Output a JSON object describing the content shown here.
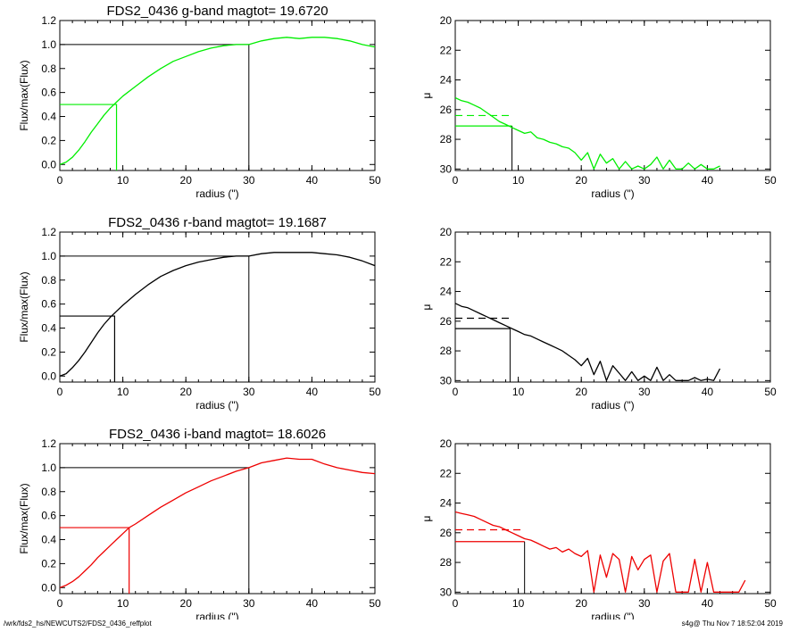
{
  "footer": {
    "left": "/wrk/fds2_hs/NEWCUTS2/FDS2_0436_reffplot",
    "right": "s4g@  Thu Nov  7 18:52:04 2019"
  },
  "chart_data": [
    {
      "type": "line",
      "panel": "growth",
      "band": "g",
      "title": "FDS2_0436 g-band  magtot=      19.6720",
      "xlabel": "radius (\")",
      "ylabel": "Flux/max(Flux)",
      "xlim": [
        0,
        50
      ],
      "ylim": [
        -0.05,
        1.2
      ],
      "xticks": [
        0,
        10,
        20,
        30,
        40,
        50
      ],
      "yticks": [
        0.0,
        0.2,
        0.4,
        0.6,
        0.8,
        1.0,
        1.2
      ],
      "color": "#00ee00",
      "reff": 9.0,
      "rmax": 30.0,
      "x": [
        0,
        1,
        2,
        3,
        4,
        5,
        6,
        7,
        8,
        9,
        10,
        12,
        14,
        16,
        18,
        20,
        22,
        24,
        26,
        28,
        30,
        32,
        34,
        36,
        38,
        40,
        42,
        44,
        46,
        48,
        50
      ],
      "y": [
        0.0,
        0.02,
        0.06,
        0.12,
        0.19,
        0.27,
        0.34,
        0.41,
        0.47,
        0.52,
        0.57,
        0.65,
        0.73,
        0.8,
        0.86,
        0.9,
        0.94,
        0.97,
        0.99,
        1.0,
        1.0,
        1.03,
        1.05,
        1.06,
        1.05,
        1.06,
        1.06,
        1.05,
        1.03,
        1.0,
        0.98
      ]
    },
    {
      "type": "line",
      "panel": "surface-brightness",
      "band": "g",
      "xlabel": "radius (\")",
      "ylabel": "μ",
      "xlim": [
        0,
        50
      ],
      "ylim": [
        30.1,
        20
      ],
      "xticks": [
        0,
        10,
        20,
        30,
        40,
        50
      ],
      "yticks": [
        20,
        22,
        24,
        26,
        28,
        30
      ],
      "color": "#00ee00",
      "mu_eff": 27.1,
      "mu_mean": 26.4,
      "reff": 9.0,
      "x": [
        0,
        1,
        2,
        3,
        4,
        5,
        6,
        7,
        8,
        9,
        10,
        11,
        12,
        13,
        14,
        15,
        16,
        17,
        18,
        19,
        20,
        21,
        22,
        23,
        24,
        25,
        26,
        27,
        28,
        29,
        30,
        31,
        32,
        33,
        34,
        35,
        36,
        37,
        38,
        39,
        40,
        41,
        42
      ],
      "y": [
        25.2,
        25.4,
        25.5,
        25.7,
        25.9,
        26.2,
        26.5,
        26.8,
        27.0,
        27.2,
        27.4,
        27.6,
        27.5,
        27.9,
        28.0,
        28.2,
        28.3,
        28.5,
        28.6,
        28.9,
        29.4,
        28.9,
        30.0,
        29.0,
        29.6,
        29.3,
        30.0,
        29.5,
        30.0,
        29.8,
        30.0,
        29.7,
        29.2,
        30.0,
        29.4,
        30.0,
        30.0,
        29.6,
        30.0,
        29.7,
        30.0,
        30.0,
        29.8
      ]
    },
    {
      "type": "line",
      "panel": "growth",
      "band": "r",
      "title": "FDS2_0436 r-band  magtot=      19.1687",
      "xlabel": "radius (\")",
      "ylabel": "Flux/max(Flux)",
      "xlim": [
        0,
        50
      ],
      "ylim": [
        -0.05,
        1.2
      ],
      "xticks": [
        0,
        10,
        20,
        30,
        40,
        50
      ],
      "yticks": [
        0.0,
        0.2,
        0.4,
        0.6,
        0.8,
        1.0,
        1.2
      ],
      "color": "#000000",
      "reff": 8.7,
      "rmax": 30.0,
      "x": [
        0,
        1,
        2,
        3,
        4,
        5,
        6,
        7,
        8,
        9,
        10,
        12,
        14,
        16,
        18,
        20,
        22,
        24,
        26,
        28,
        30,
        32,
        34,
        36,
        38,
        40,
        42,
        44,
        46,
        48,
        50
      ],
      "y": [
        0.0,
        0.02,
        0.07,
        0.13,
        0.2,
        0.28,
        0.36,
        0.43,
        0.49,
        0.54,
        0.59,
        0.68,
        0.76,
        0.83,
        0.88,
        0.92,
        0.95,
        0.97,
        0.99,
        1.0,
        1.0,
        1.02,
        1.03,
        1.03,
        1.03,
        1.03,
        1.02,
        1.01,
        0.99,
        0.96,
        0.92
      ]
    },
    {
      "type": "line",
      "panel": "surface-brightness",
      "band": "r",
      "xlabel": "radius (\")",
      "ylabel": "μ",
      "xlim": [
        0,
        50
      ],
      "ylim": [
        30.1,
        20
      ],
      "xticks": [
        0,
        10,
        20,
        30,
        40,
        50
      ],
      "yticks": [
        20,
        22,
        24,
        26,
        28,
        30
      ],
      "color": "#000000",
      "mu_eff": 26.5,
      "mu_mean": 25.8,
      "reff": 8.7,
      "x": [
        0,
        1,
        2,
        3,
        4,
        5,
        6,
        7,
        8,
        9,
        10,
        11,
        12,
        13,
        14,
        15,
        16,
        17,
        18,
        19,
        20,
        21,
        22,
        23,
        24,
        25,
        26,
        27,
        28,
        29,
        30,
        31,
        32,
        33,
        34,
        35,
        36,
        37,
        38,
        39,
        40,
        41,
        42
      ],
      "y": [
        24.8,
        25.0,
        25.1,
        25.3,
        25.5,
        25.7,
        25.9,
        26.1,
        26.3,
        26.5,
        26.7,
        26.9,
        27.0,
        27.2,
        27.4,
        27.6,
        27.8,
        28.0,
        28.3,
        28.6,
        29.0,
        28.5,
        29.6,
        28.7,
        30.0,
        29.0,
        29.5,
        30.0,
        29.4,
        30.0,
        29.7,
        30.0,
        29.1,
        30.0,
        29.6,
        30.0,
        30.0,
        30.0,
        29.8,
        30.0,
        29.9,
        30.0,
        29.2
      ]
    },
    {
      "type": "line",
      "panel": "growth",
      "band": "i",
      "title": "FDS2_0436 i-band  magtot=      18.6026",
      "xlabel": "radius (\")",
      "ylabel": "Flux/max(Flux)",
      "xlim": [
        0,
        50
      ],
      "ylim": [
        -0.05,
        1.2
      ],
      "xticks": [
        0,
        10,
        20,
        30,
        40,
        50
      ],
      "yticks": [
        0.0,
        0.2,
        0.4,
        0.6,
        0.8,
        1.0,
        1.2
      ],
      "color": "#ee0000",
      "reff": 11.0,
      "rmax": 30.0,
      "x": [
        0,
        1,
        2,
        3,
        4,
        5,
        6,
        7,
        8,
        9,
        10,
        11,
        12,
        14,
        16,
        18,
        20,
        22,
        24,
        26,
        28,
        30,
        32,
        34,
        36,
        38,
        40,
        42,
        44,
        46,
        48,
        50
      ],
      "y": [
        0.0,
        0.02,
        0.05,
        0.09,
        0.14,
        0.19,
        0.25,
        0.3,
        0.35,
        0.4,
        0.45,
        0.5,
        0.53,
        0.6,
        0.67,
        0.73,
        0.79,
        0.84,
        0.89,
        0.93,
        0.97,
        1.0,
        1.04,
        1.06,
        1.08,
        1.07,
        1.07,
        1.03,
        1.0,
        0.98,
        0.96,
        0.95
      ]
    },
    {
      "type": "line",
      "panel": "surface-brightness",
      "band": "i",
      "xlabel": "radius (\")",
      "ylabel": "μ",
      "xlim": [
        0,
        50
      ],
      "ylim": [
        30.1,
        20
      ],
      "xticks": [
        0,
        10,
        20,
        30,
        40,
        50
      ],
      "yticks": [
        20,
        22,
        24,
        26,
        28,
        30
      ],
      "color": "#ee0000",
      "mu_eff": 26.6,
      "mu_mean": 25.8,
      "reff": 11.0,
      "x": [
        0,
        1,
        2,
        3,
        4,
        5,
        6,
        7,
        8,
        9,
        10,
        11,
        12,
        13,
        14,
        15,
        16,
        17,
        18,
        19,
        20,
        21,
        22,
        23,
        24,
        25,
        26,
        27,
        28,
        29,
        30,
        31,
        32,
        33,
        34,
        35,
        36,
        37,
        38,
        39,
        40,
        41,
        42,
        43,
        44,
        45,
        46
      ],
      "y": [
        24.6,
        24.7,
        24.8,
        24.9,
        25.1,
        25.3,
        25.5,
        25.6,
        25.8,
        26.0,
        26.2,
        26.4,
        26.5,
        26.7,
        26.9,
        27.1,
        27.0,
        27.3,
        27.1,
        27.4,
        27.6,
        27.2,
        30.0,
        27.5,
        29.0,
        27.4,
        27.8,
        30.0,
        27.6,
        28.5,
        27.8,
        27.5,
        30.0,
        27.9,
        27.4,
        30.0,
        30.0,
        30.0,
        27.8,
        30.0,
        28.0,
        30.0,
        30.0,
        30.0,
        30.0,
        30.0,
        29.2
      ]
    }
  ]
}
